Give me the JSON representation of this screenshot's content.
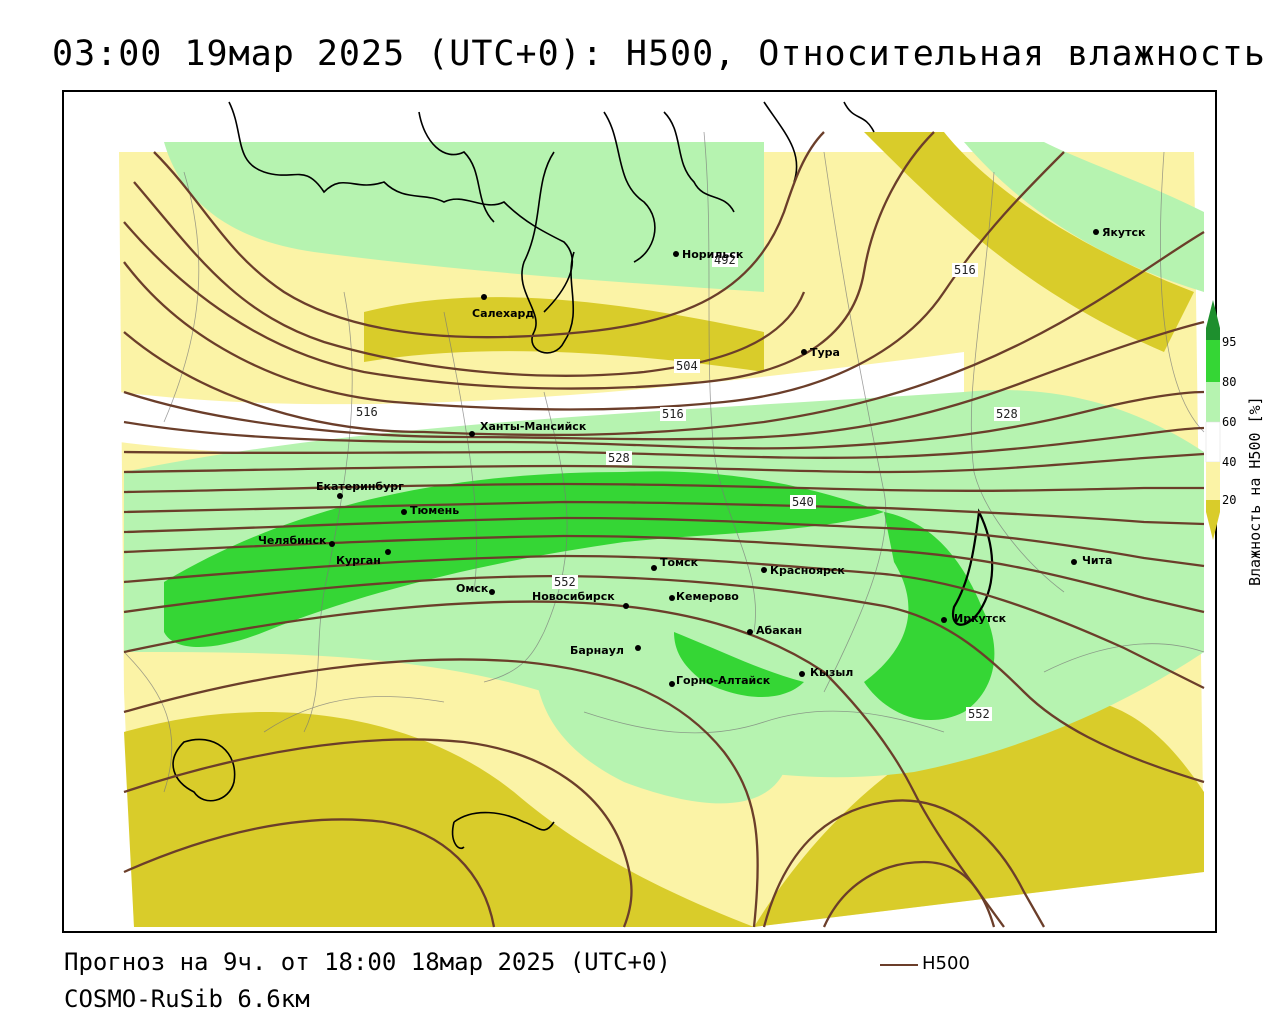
{
  "header": {
    "title": "03:00 19мар 2025 (UTC+0): H500, Относительная влажность"
  },
  "footer": {
    "forecast": "Прогноз на 9ч. от 18:00 18мар 2025 (UTC+0)",
    "model": "COSMO-RuSib 6.6км",
    "legend_label": "H500"
  },
  "colorbar": {
    "title": "Влажность на H500 [%]",
    "ticks": [
      "95",
      "80",
      "60",
      "40",
      "20"
    ],
    "colors": {
      "c95": "#1e8f2e",
      "c80": "#35d635",
      "c60": "#b6f3b0",
      "c40": "#ffffff",
      "c20_low": "#fbf3a6",
      "c20": "#d9cc2a"
    }
  },
  "map": {
    "contour_color": "#6b3e2a",
    "cities": [
      {
        "name": "Норильск"
      },
      {
        "name": "Якутск"
      },
      {
        "name": "Салехард"
      },
      {
        "name": "Тура"
      },
      {
        "name": "Ханты-Мансийск"
      },
      {
        "name": "Екатеринбург"
      },
      {
        "name": "Тюмень"
      },
      {
        "name": "Челябинск"
      },
      {
        "name": "Курган"
      },
      {
        "name": "Омск"
      },
      {
        "name": "Томск"
      },
      {
        "name": "Красноярск"
      },
      {
        "name": "Новосибирск"
      },
      {
        "name": "Кемерово"
      },
      {
        "name": "Барнаул"
      },
      {
        "name": "Абакан"
      },
      {
        "name": "Горно-Алтайск"
      },
      {
        "name": "Кызыл"
      },
      {
        "name": "Иркутск"
      },
      {
        "name": "Чита"
      }
    ],
    "isoline_labels": [
      "492",
      "516",
      "504",
      "516",
      "516",
      "528",
      "528",
      "540",
      "552",
      "552"
    ]
  }
}
